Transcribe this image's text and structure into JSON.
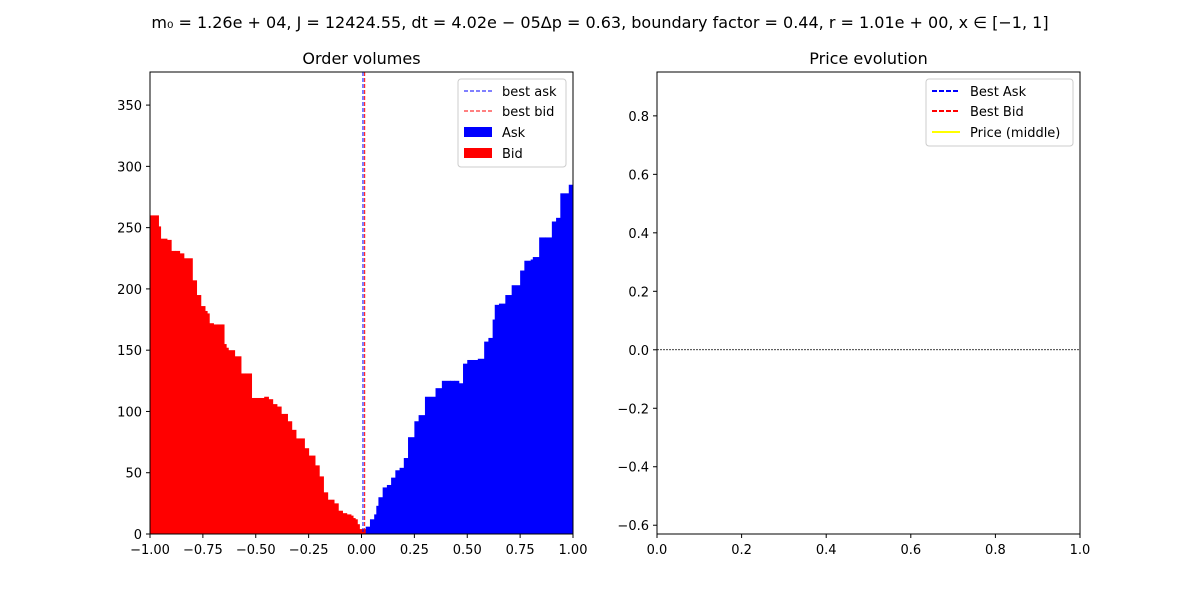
{
  "suptitle": "m₀ = 1.26e + 04, J = 12424.55, dt = 4.02e − 05Δp = 0.63, boundary factor = 0.44, r = 1.01e + 00, x ∈ [−1, 1]",
  "colors": {
    "ask": "#0000ff",
    "bid": "#ff0000",
    "price": "#ffff00",
    "zero_line": "#000000"
  },
  "chart_data": [
    {
      "type": "bar",
      "title": "Order volumes",
      "xlim": [
        -1.0,
        1.0
      ],
      "ylim": [
        0,
        377
      ],
      "xticks": [
        -1.0,
        -0.75,
        -0.5,
        -0.25,
        0.0,
        0.25,
        0.5,
        0.75,
        1.0
      ],
      "xtick_labels": [
        "−1.00",
        "−0.75",
        "−0.50",
        "−0.25",
        "0.00",
        "0.25",
        "0.50",
        "0.75",
        "1.00"
      ],
      "yticks": [
        0,
        50,
        100,
        150,
        200,
        250,
        300,
        350
      ],
      "ytick_labels": [
        "0",
        "50",
        "100",
        "150",
        "200",
        "250",
        "300",
        "350"
      ],
      "best_ask": 0.007,
      "best_bid": 0.015,
      "legend": {
        "placement": "upper right",
        "entries": [
          "best ask",
          "best bid",
          "Ask",
          "Bid"
        ]
      },
      "bid_steps": [
        [
          -1.0,
          260
        ],
        [
          -0.96,
          251
        ],
        [
          -0.95,
          241
        ],
        [
          -0.92,
          240
        ],
        [
          -0.9,
          231
        ],
        [
          -0.88,
          231
        ],
        [
          -0.86,
          229
        ],
        [
          -0.84,
          225
        ],
        [
          -0.8,
          207
        ],
        [
          -0.78,
          195
        ],
        [
          -0.76,
          186
        ],
        [
          -0.74,
          182
        ],
        [
          -0.73,
          180
        ],
        [
          -0.72,
          172
        ],
        [
          -0.7,
          171
        ],
        [
          -0.68,
          171
        ],
        [
          -0.66,
          171
        ],
        [
          -0.65,
          155
        ],
        [
          -0.64,
          152
        ],
        [
          -0.63,
          150
        ],
        [
          -0.6,
          145
        ],
        [
          -0.57,
          131
        ],
        [
          -0.55,
          131
        ],
        [
          -0.52,
          111
        ],
        [
          -0.46,
          112
        ],
        [
          -0.44,
          110
        ],
        [
          -0.42,
          106
        ],
        [
          -0.4,
          104
        ],
        [
          -0.38,
          98
        ],
        [
          -0.35,
          92
        ],
        [
          -0.33,
          85
        ],
        [
          -0.31,
          78
        ],
        [
          -0.27,
          70
        ],
        [
          -0.25,
          64
        ],
        [
          -0.22,
          56
        ],
        [
          -0.2,
          47
        ],
        [
          -0.18,
          34
        ],
        [
          -0.16,
          28
        ],
        [
          -0.13,
          25
        ],
        [
          -0.11,
          19
        ],
        [
          -0.09,
          17
        ],
        [
          -0.07,
          16
        ],
        [
          -0.05,
          15
        ],
        [
          -0.04,
          13
        ],
        [
          -0.03,
          12
        ],
        [
          -0.02,
          8
        ],
        [
          -0.01,
          4
        ]
      ],
      "ask_steps": [
        [
          0.01,
          0
        ],
        [
          0.02,
          6
        ],
        [
          0.04,
          12
        ],
        [
          0.06,
          16
        ],
        [
          0.07,
          23
        ],
        [
          0.08,
          30
        ],
        [
          0.1,
          38
        ],
        [
          0.12,
          40
        ],
        [
          0.14,
          46
        ],
        [
          0.16,
          52
        ],
        [
          0.18,
          54
        ],
        [
          0.2,
          62
        ],
        [
          0.22,
          79
        ],
        [
          0.25,
          92
        ],
        [
          0.27,
          97
        ],
        [
          0.3,
          112
        ],
        [
          0.35,
          119
        ],
        [
          0.38,
          125
        ],
        [
          0.42,
          125
        ],
        [
          0.44,
          125
        ],
        [
          0.46,
          123
        ],
        [
          0.48,
          139
        ],
        [
          0.5,
          142
        ],
        [
          0.55,
          143
        ],
        [
          0.58,
          157
        ],
        [
          0.6,
          160
        ],
        [
          0.62,
          175
        ],
        [
          0.63,
          187
        ],
        [
          0.65,
          188
        ],
        [
          0.68,
          195
        ],
        [
          0.71,
          203
        ],
        [
          0.75,
          215
        ],
        [
          0.77,
          223
        ],
        [
          0.8,
          224
        ],
        [
          0.81,
          226
        ],
        [
          0.84,
          242
        ],
        [
          0.87,
          242
        ],
        [
          0.9,
          255
        ],
        [
          0.92,
          258
        ],
        [
          0.94,
          278
        ],
        [
          0.98,
          285
        ],
        [
          1.0,
          285
        ]
      ]
    },
    {
      "type": "line",
      "title": "Price evolution",
      "xlim": [
        0.0,
        1.0
      ],
      "ylim": [
        -0.63,
        0.95
      ],
      "xticks": [
        0.0,
        0.2,
        0.4,
        0.6,
        0.8,
        1.0
      ],
      "xtick_labels": [
        "0.0",
        "0.2",
        "0.4",
        "0.6",
        "0.8",
        "1.0"
      ],
      "yticks": [
        -0.6,
        -0.4,
        -0.2,
        0.0,
        0.2,
        0.4,
        0.6,
        0.8
      ],
      "ytick_labels": [
        "−0.6",
        "−0.4",
        "−0.2",
        "0.0",
        "0.2",
        "0.4",
        "0.6",
        "0.8"
      ],
      "zero_line": 0.0,
      "series": [
        {
          "name": "Best Ask",
          "style": "dashed",
          "values": []
        },
        {
          "name": "Best Bid",
          "style": "dashed",
          "values": []
        },
        {
          "name": "Price (middle)",
          "style": "solid",
          "values": []
        }
      ],
      "legend": {
        "placement": "upper right"
      }
    }
  ]
}
